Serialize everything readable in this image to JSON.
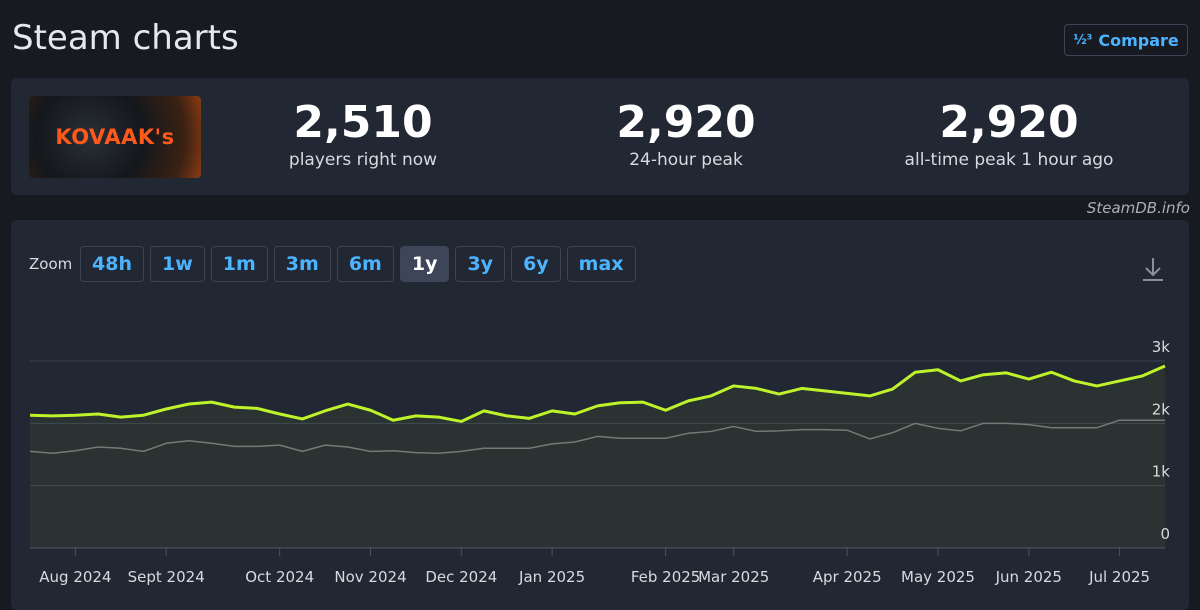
{
  "header": {
    "title": "Steam charts",
    "compare": "Compare"
  },
  "game": {
    "logo": "KOVAAK's"
  },
  "stats": [
    {
      "value": "2,510",
      "label": "players right now"
    },
    {
      "value": "2,920",
      "label": "24-hour peak"
    },
    {
      "value": "2,920",
      "label": "all-time peak 1 hour ago"
    }
  ],
  "watermark": "SteamDB.info",
  "zoom": {
    "label": "Zoom",
    "buttons": [
      "48h",
      "1w",
      "1m",
      "3m",
      "6m",
      "1y",
      "3y",
      "6y",
      "max"
    ],
    "active": "1y"
  },
  "chart_data": {
    "type": "line",
    "categories": [
      null,
      null,
      "Aug 2024",
      null,
      null,
      null,
      "Sept 2024",
      null,
      null,
      null,
      null,
      "Oct 2024",
      null,
      null,
      null,
      "Nov 2024",
      null,
      null,
      null,
      "Dec 2024",
      null,
      null,
      null,
      "Jan 2025",
      null,
      null,
      null,
      null,
      "Feb 2025",
      null,
      null,
      "Mar 2025",
      null,
      null,
      null,
      null,
      "Apr 2025",
      null,
      null,
      null,
      "May 2025",
      null,
      null,
      null,
      "Jun 2025",
      null,
      null,
      null,
      "Jul 2025",
      null,
      null
    ],
    "series": [
      {
        "color": "#bef22a",
        "values": [
          2130,
          2120,
          2130,
          2150,
          2100,
          2130,
          2230,
          2310,
          2340,
          2260,
          2240,
          2150,
          2070,
          2200,
          2310,
          2210,
          2050,
          2120,
          2100,
          2030,
          2200,
          2120,
          2080,
          2200,
          2150,
          2280,
          2330,
          2340,
          2210,
          2360,
          2440,
          2600,
          2560,
          2470,
          2560,
          2520,
          2480,
          2440,
          2550,
          2820,
          2860,
          2680,
          2780,
          2810,
          2710,
          2820,
          2680,
          2600,
          2680,
          2760,
          2920
        ]
      },
      {
        "color": "#6f747c",
        "values": [
          1550,
          1520,
          1560,
          1620,
          1600,
          1550,
          1680,
          1720,
          1680,
          1630,
          1630,
          1650,
          1550,
          1650,
          1620,
          1550,
          1560,
          1530,
          1520,
          1550,
          1600,
          1600,
          1600,
          1670,
          1700,
          1790,
          1760,
          1760,
          1760,
          1840,
          1870,
          1950,
          1870,
          1880,
          1900,
          1900,
          1890,
          1750,
          1850,
          2000,
          1920,
          1880,
          2000,
          2000,
          1980,
          1930,
          1930,
          1930,
          2050,
          2050,
          2050
        ]
      }
    ],
    "ylim": [
      0,
      3000
    ],
    "yticks": [
      0,
      {
        "value": 1000,
        "label": "1k"
      },
      {
        "value": 2000,
        "label": "2k"
      },
      {
        "value": 3000,
        "label": "3k"
      }
    ],
    "grid": true
  }
}
